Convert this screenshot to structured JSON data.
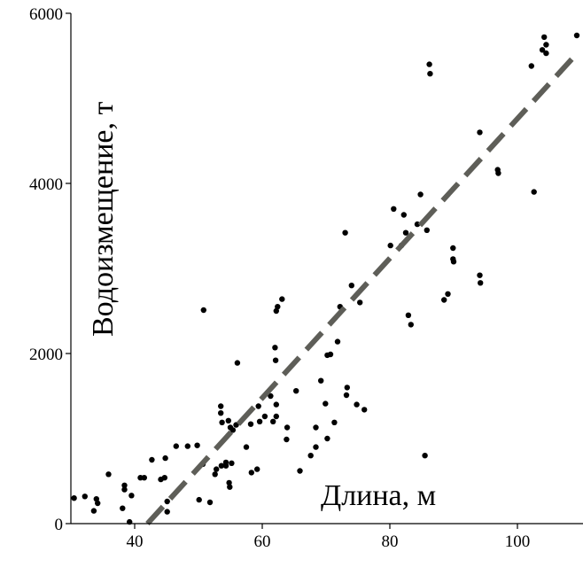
{
  "chart_data": {
    "type": "scatter",
    "title": "",
    "xlabel": "Длина, м",
    "ylabel": "Водоизмещение, т",
    "xlim": [
      30,
      110
    ],
    "ylim": [
      0,
      6000
    ],
    "x_ticks": [
      40,
      60,
      80,
      100
    ],
    "x_tick_labels": [
      "40",
      "60",
      "80",
      "100"
    ],
    "y_ticks": [
      0,
      2000,
      4000,
      6000
    ],
    "y_tick_labels": [
      "0",
      "2000",
      "4000",
      "6000"
    ],
    "grid": false,
    "points_color": "#000000",
    "trendline": {
      "style": "dashed",
      "color": "#5e5e58",
      "x": [
        42,
        109
      ],
      "y": [
        0,
        5500
      ]
    },
    "points": [
      [
        30.5,
        300
      ],
      [
        32.2,
        320
      ],
      [
        33.6,
        150
      ],
      [
        34.0,
        290
      ],
      [
        34.2,
        240
      ],
      [
        35.9,
        580
      ],
      [
        38.1,
        180
      ],
      [
        38.4,
        450
      ],
      [
        38.4,
        400
      ],
      [
        39.2,
        20
      ],
      [
        39.5,
        330
      ],
      [
        40.9,
        540
      ],
      [
        41.5,
        540
      ],
      [
        42.7,
        750
      ],
      [
        44.1,
        520
      ],
      [
        44.7,
        540
      ],
      [
        44.8,
        770
      ],
      [
        45.1,
        260
      ],
      [
        45.1,
        140
      ],
      [
        46.5,
        910
      ],
      [
        48.3,
        910
      ],
      [
        49.8,
        920
      ],
      [
        50.1,
        280
      ],
      [
        50.7,
        700
      ],
      [
        50.8,
        2510
      ],
      [
        51.8,
        250
      ],
      [
        52.6,
        580
      ],
      [
        52.8,
        640
      ],
      [
        53.5,
        1380
      ],
      [
        53.5,
        1300
      ],
      [
        53.6,
        680
      ],
      [
        53.7,
        1190
      ],
      [
        54.3,
        680
      ],
      [
        54.3,
        720
      ],
      [
        54.7,
        1210
      ],
      [
        54.8,
        480
      ],
      [
        54.9,
        430
      ],
      [
        55.0,
        1130
      ],
      [
        55.2,
        710
      ],
      [
        55.4,
        1100
      ],
      [
        55.9,
        1160
      ],
      [
        56.1,
        1890
      ],
      [
        57.5,
        900
      ],
      [
        58.2,
        1170
      ],
      [
        58.3,
        600
      ],
      [
        59.2,
        640
      ],
      [
        59.4,
        1380
      ],
      [
        59.6,
        1200
      ],
      [
        60.4,
        1260
      ],
      [
        61.3,
        1500
      ],
      [
        61.7,
        1200
      ],
      [
        62.0,
        2070
      ],
      [
        62.1,
        1920
      ],
      [
        62.2,
        1260
      ],
      [
        62.2,
        2500
      ],
      [
        62.2,
        1400
      ],
      [
        62.4,
        2550
      ],
      [
        63.1,
        2640
      ],
      [
        63.8,
        990
      ],
      [
        63.9,
        1130
      ],
      [
        65.3,
        1560
      ],
      [
        65.9,
        620
      ],
      [
        67.6,
        800
      ],
      [
        68.4,
        900
      ],
      [
        68.4,
        1130
      ],
      [
        69.2,
        1680
      ],
      [
        69.9,
        1410
      ],
      [
        70.2,
        1000
      ],
      [
        70.2,
        1980
      ],
      [
        70.7,
        1990
      ],
      [
        71.3,
        1190
      ],
      [
        71.8,
        2140
      ],
      [
        72.2,
        2550
      ],
      [
        73.0,
        3420
      ],
      [
        73.2,
        1510
      ],
      [
        73.3,
        1600
      ],
      [
        74.0,
        2800
      ],
      [
        74.8,
        1400
      ],
      [
        75.3,
        2600
      ],
      [
        76.0,
        1340
      ],
      [
        80.1,
        3270
      ],
      [
        80.6,
        3700
      ],
      [
        81.8,
        3270
      ],
      [
        82.2,
        3630
      ],
      [
        82.5,
        3420
      ],
      [
        82.9,
        2450
      ],
      [
        83.3,
        2340
      ],
      [
        84.3,
        3520
      ],
      [
        84.8,
        3870
      ],
      [
        85.5,
        800
      ],
      [
        85.8,
        3450
      ],
      [
        86.2,
        5400
      ],
      [
        86.3,
        5290
      ],
      [
        88.5,
        2630
      ],
      [
        89.1,
        2700
      ],
      [
        89.9,
        3240
      ],
      [
        89.9,
        3110
      ],
      [
        90.0,
        3080
      ],
      [
        94.1,
        4600
      ],
      [
        94.1,
        2920
      ],
      [
        94.2,
        2830
      ],
      [
        96.9,
        4160
      ],
      [
        97.0,
        4120
      ],
      [
        102.2,
        5380
      ],
      [
        102.6,
        3900
      ],
      [
        103.9,
        5570
      ],
      [
        104.2,
        5720
      ],
      [
        104.5,
        5630
      ],
      [
        104.5,
        5530
      ],
      [
        109.3,
        5740
      ]
    ]
  }
}
